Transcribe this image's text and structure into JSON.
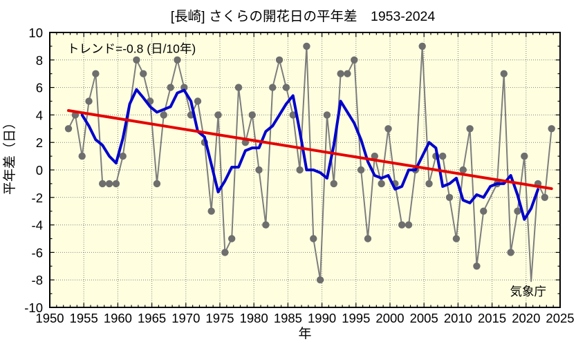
{
  "title": "[長崎] さくらの開花日の平年差　1953-2024",
  "annotation": "トレンド=-0.8 (日/10年)",
  "watermark": "気象庁",
  "xlabel": "年",
  "ylabel": "平年差（日）",
  "colors": {
    "plot_background": "#ffffe0",
    "annual_line": "#7d7d7d",
    "annual_marker": "#6e6e6e",
    "moving_avg_line": "#0000cc",
    "trend_line": "#e60000",
    "grid": "#7f7f7f",
    "border": "#000000"
  },
  "chart_data": {
    "type": "line",
    "xlim": [
      1950,
      2025
    ],
    "ylim": [
      -10,
      10
    ],
    "x_ticks": [
      1950,
      1955,
      1960,
      1965,
      1970,
      1975,
      1980,
      1985,
      1990,
      1995,
      2000,
      2005,
      2010,
      2015,
      2020,
      2025
    ],
    "y_ticks": [
      -10,
      -8,
      -6,
      -4,
      -2,
      0,
      2,
      4,
      6,
      8,
      10
    ],
    "grid": true,
    "series": [
      {
        "name": "annual_anomaly",
        "start_year": 1953,
        "values": [
          3,
          4,
          1,
          5,
          7,
          -1,
          -1,
          -1,
          1,
          4.5,
          8,
          7,
          5,
          -1,
          4,
          6,
          8,
          6,
          4,
          5,
          2,
          -3,
          4,
          -6,
          -5,
          6,
          2,
          4,
          0,
          -4,
          6,
          8,
          6,
          4,
          0,
          9,
          -5,
          -8,
          4,
          -1,
          7,
          7,
          8,
          0,
          -5,
          1,
          -1,
          3,
          -1,
          -4,
          -4,
          0,
          9,
          -1,
          1,
          1,
          -2,
          -5,
          0,
          3,
          -7,
          -3,
          -2,
          -1,
          7,
          -6,
          -3,
          1,
          -8.1,
          -1,
          -2,
          3
        ],
        "hidden_marker_years": [
          1962,
          2015,
          2021
        ]
      },
      {
        "name": "five_year_moving_average",
        "start_year": 1955,
        "values": [
          4.0,
          3.2,
          2.2,
          1.8,
          1.0,
          0.5,
          2.3,
          4.8,
          5.85,
          5.25,
          4.6,
          4.2,
          4.4,
          4.6,
          5.6,
          5.8,
          5.0,
          2.8,
          2.4,
          0.4,
          -1.6,
          -0.8,
          0.2,
          0.2,
          1.4,
          1.6,
          1.6,
          2.8,
          3.2,
          4.0,
          4.8,
          5.4,
          2.8,
          0.0,
          0.0,
          -0.2,
          -0.6,
          1.8,
          5.0,
          4.2,
          3.4,
          2.2,
          0.6,
          -0.4,
          -0.6,
          -0.4,
          -1.4,
          -1.2,
          0.0,
          0.0,
          1.0,
          2.0,
          1.6,
          -1.2,
          -1.0,
          -0.6,
          -2.2,
          -2.4,
          -1.8,
          -2.0,
          -1.2,
          -1.0,
          -1.0,
          -0.4,
          -1.82,
          -3.6,
          -2.8,
          -1.42
        ]
      },
      {
        "name": "linear_trend",
        "trend_per_decade": -0.8,
        "points": [
          [
            1953,
            4.32
          ],
          [
            2024,
            -1.36
          ]
        ]
      }
    ]
  }
}
